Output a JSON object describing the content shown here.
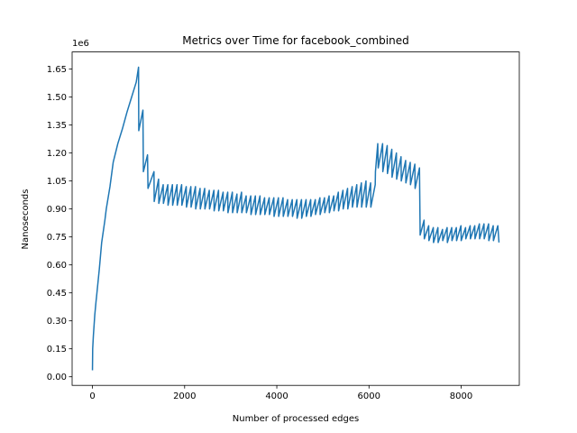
{
  "chart_data": {
    "type": "line",
    "title": "Metrics over Time for facebook_combined",
    "x_label": "Number of processed edges",
    "y_label": "Nanoseconds",
    "y_offset_label": "1e6",
    "color": "#1f77b4",
    "xlim": [
      -441,
      9261
    ],
    "ylim": [
      -0.046,
      1.742
    ],
    "xticks": [
      0,
      2000,
      4000,
      6000,
      8000
    ],
    "yticks": [
      {
        "value": 0,
        "label": "0.00"
      },
      0.15,
      {
        "value": 0.3,
        "label": "0.30"
      },
      0.45,
      {
        "value": 0.6,
        "label": "0.60"
      },
      0.75,
      {
        "value": 0.9,
        "label": "0.90"
      },
      1.05,
      {
        "value": 1.2,
        "label": "1.20"
      },
      1.35,
      {
        "value": 1.5,
        "label": "1.50"
      },
      1.65
    ],
    "x": [
      0,
      5,
      20,
      50,
      80,
      85,
      150,
      200,
      270,
      300,
      380,
      450,
      550,
      650,
      750,
      850,
      950,
      1000,
      1005,
      1095,
      1105,
      1195,
      1205,
      1335,
      1340,
      1435,
      1440,
      1535,
      1540,
      1635,
      1640,
      1735,
      1740,
      1835,
      1840,
      1935,
      1940,
      2035,
      2040,
      2135,
      2140,
      2235,
      2240,
      2335,
      2340,
      2435,
      2440,
      2535,
      2540,
      2635,
      2640,
      2735,
      2740,
      2835,
      2840,
      2935,
      2940,
      3035,
      3040,
      3135,
      3140,
      3235,
      3240,
      3335,
      3340,
      3435,
      3440,
      3535,
      3540,
      3635,
      3640,
      3735,
      3740,
      3835,
      3840,
      3935,
      3940,
      4035,
      4040,
      4135,
      4140,
      4235,
      4240,
      4335,
      4340,
      4435,
      4440,
      4535,
      4540,
      4635,
      4640,
      4735,
      4740,
      4835,
      4840,
      4935,
      4940,
      5035,
      5040,
      5135,
      5140,
      5235,
      5240,
      5335,
      5340,
      5435,
      5440,
      5535,
      5540,
      5635,
      5640,
      5735,
      5740,
      5835,
      5840,
      5935,
      5940,
      6035,
      6040,
      6135,
      6140,
      6190,
      6200,
      6295,
      6300,
      6395,
      6400,
      6495,
      6500,
      6595,
      6600,
      6695,
      6700,
      6795,
      6800,
      6895,
      6900,
      6995,
      7000,
      7095,
      7110,
      7195,
      7200,
      7295,
      7300,
      7395,
      7400,
      7495,
      7500,
      7595,
      7600,
      7695,
      7700,
      7795,
      7800,
      7895,
      7900,
      7995,
      8000,
      8095,
      8100,
      8195,
      8200,
      8295,
      8300,
      8395,
      8400,
      8495,
      8500,
      8595,
      8600,
      8695,
      8700,
      8795,
      8820
    ],
    "values": [
      0.035,
      0.15,
      0.22,
      0.33,
      0.41,
      0.42,
      0.58,
      0.72,
      0.84,
      0.9,
      1.02,
      1.15,
      1.25,
      1.33,
      1.42,
      1.5,
      1.58,
      1.66,
      1.32,
      1.43,
      1.1,
      1.19,
      1.01,
      1.1,
      0.94,
      1.06,
      0.93,
      1.03,
      0.93,
      1.03,
      0.92,
      1.03,
      0.92,
      1.03,
      0.92,
      1.03,
      0.92,
      1.02,
      0.91,
      1.02,
      0.91,
      1.02,
      0.9,
      1.01,
      0.9,
      1.01,
      0.9,
      1.0,
      0.9,
      1.0,
      0.89,
      1.0,
      0.89,
      0.99,
      0.89,
      0.99,
      0.88,
      0.99,
      0.88,
      0.98,
      0.88,
      0.99,
      0.88,
      0.97,
      0.88,
      0.97,
      0.87,
      0.97,
      0.87,
      0.97,
      0.87,
      0.96,
      0.87,
      0.96,
      0.87,
      0.96,
      0.86,
      0.96,
      0.86,
      0.96,
      0.86,
      0.95,
      0.86,
      0.95,
      0.86,
      0.95,
      0.85,
      0.95,
      0.85,
      0.95,
      0.86,
      0.95,
      0.86,
      0.95,
      0.87,
      0.96,
      0.87,
      0.96,
      0.88,
      0.97,
      0.88,
      0.97,
      0.89,
      0.99,
      0.89,
      1.0,
      0.9,
      1.01,
      0.9,
      1.02,
      0.91,
      1.03,
      0.91,
      1.04,
      0.91,
      1.05,
      0.91,
      1.04,
      0.91,
      1.03,
      1.1,
      1.25,
      1.12,
      1.25,
      1.1,
      1.24,
      1.09,
      1.22,
      1.07,
      1.2,
      1.06,
      1.18,
      1.05,
      1.16,
      1.04,
      1.15,
      1.03,
      1.14,
      1.01,
      1.12,
      0.76,
      0.84,
      0.74,
      0.81,
      0.73,
      0.8,
      0.72,
      0.8,
      0.72,
      0.79,
      0.73,
      0.8,
      0.72,
      0.8,
      0.73,
      0.8,
      0.73,
      0.81,
      0.73,
      0.8,
      0.74,
      0.81,
      0.74,
      0.81,
      0.74,
      0.82,
      0.74,
      0.82,
      0.74,
      0.82,
      0.73,
      0.81,
      0.73,
      0.81,
      0.72
    ]
  }
}
